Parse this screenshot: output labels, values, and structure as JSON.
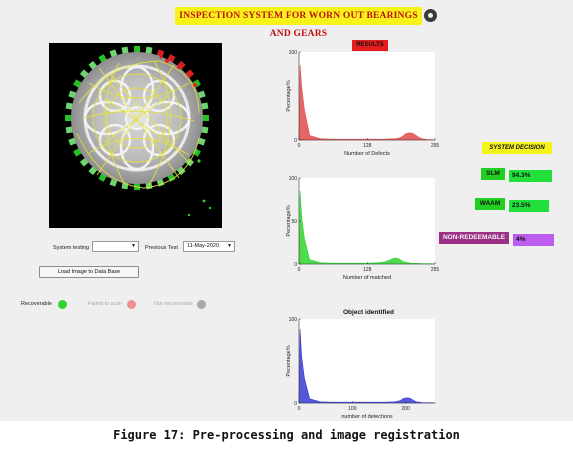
{
  "app": {
    "title": "INSPECTION SYSTEM FOR WORN OUT BEARINGS AND GEARS"
  },
  "controls": {
    "system_testing_label": "System testing",
    "system_testing_value": "",
    "previous_test_label": "Previous Test",
    "previous_test_value": "11-May-2020",
    "load_button_label": "Load  Image to Data Base"
  },
  "status_lamps": [
    {
      "label": "Recoverable",
      "color": "#2fd52f"
    },
    {
      "label": "Failed to scan",
      "color": "#f08f8f"
    },
    {
      "label": "Not recoverable",
      "color": "#a9a9a9"
    }
  ],
  "panels": {
    "results_label": "RESULTS",
    "object_identified_label": "Object identified"
  },
  "decision": {
    "title": "SYSTEM DECISION",
    "items": [
      {
        "label": "SLM",
        "value": "94.3%",
        "label_color": "#22d022",
        "value_color": "#22e03c"
      },
      {
        "label": "WAAM",
        "value": "23.5%",
        "label_color": "#22d022",
        "value_color": "#22e03c"
      },
      {
        "label": "NON-REDEEMABLE",
        "value": "4%",
        "label_color": "#9c2f86",
        "value_color": "#bc5cf0"
      }
    ]
  },
  "chart_data": [
    {
      "type": "area",
      "title": "",
      "xlabel": "Number of Defects",
      "ylabel": "Pecentage%",
      "xlim": [
        0,
        255
      ],
      "ylim": [
        0,
        100
      ],
      "xticks": [
        0,
        128,
        255
      ],
      "yticks": [
        0,
        100
      ],
      "color": "#e24a4a",
      "x": [
        0,
        2,
        5,
        10,
        20,
        40,
        60,
        80,
        100,
        130,
        160,
        180,
        190,
        195,
        200,
        205,
        210,
        215,
        220,
        225,
        230,
        240,
        255
      ],
      "values": [
        2,
        85,
        60,
        35,
        5,
        1.5,
        1,
        1,
        1,
        1,
        1,
        1.5,
        2.5,
        4.5,
        7,
        8,
        8,
        7,
        5,
        3,
        1.5,
        0.5,
        0.3
      ]
    },
    {
      "type": "area",
      "title": "",
      "xlabel": "Number of matched",
      "ylabel": "Pecentage%",
      "xlim": [
        0,
        255
      ],
      "ylim": [
        0,
        100
      ],
      "xticks": [
        0,
        128,
        255
      ],
      "yticks": [
        0,
        50,
        100
      ],
      "color": "#2fd62f",
      "x": [
        0,
        2,
        5,
        10,
        20,
        40,
        60,
        80,
        100,
        130,
        150,
        160,
        170,
        175,
        180,
        185,
        190,
        195,
        200,
        210,
        230,
        255
      ],
      "values": [
        2,
        85,
        55,
        30,
        5,
        1.5,
        1,
        1,
        1,
        1,
        1.5,
        2.5,
        4.5,
        6,
        7,
        6.5,
        5,
        3,
        2,
        1,
        0.5,
        0.3
      ]
    },
    {
      "type": "area",
      "title": "Object identified",
      "xlabel": "number of detections",
      "ylabel": "Pecentage%",
      "xlim": [
        0,
        255
      ],
      "ylim": [
        0,
        100
      ],
      "xticks": [
        0,
        100,
        200
      ],
      "yticks": [
        0,
        100
      ],
      "color": "#3a3ad6",
      "x": [
        0,
        2,
        5,
        10,
        20,
        40,
        60,
        80,
        100,
        130,
        160,
        180,
        190,
        195,
        200,
        205,
        210,
        215,
        220,
        230,
        255
      ],
      "values": [
        2,
        88,
        55,
        30,
        5,
        1.5,
        1,
        1,
        1,
        1,
        1,
        1.5,
        3,
        5,
        6,
        6,
        5,
        3,
        1.5,
        0.5,
        0.3
      ]
    }
  ],
  "caption": "Figure 17: Pre-processing and image registration"
}
